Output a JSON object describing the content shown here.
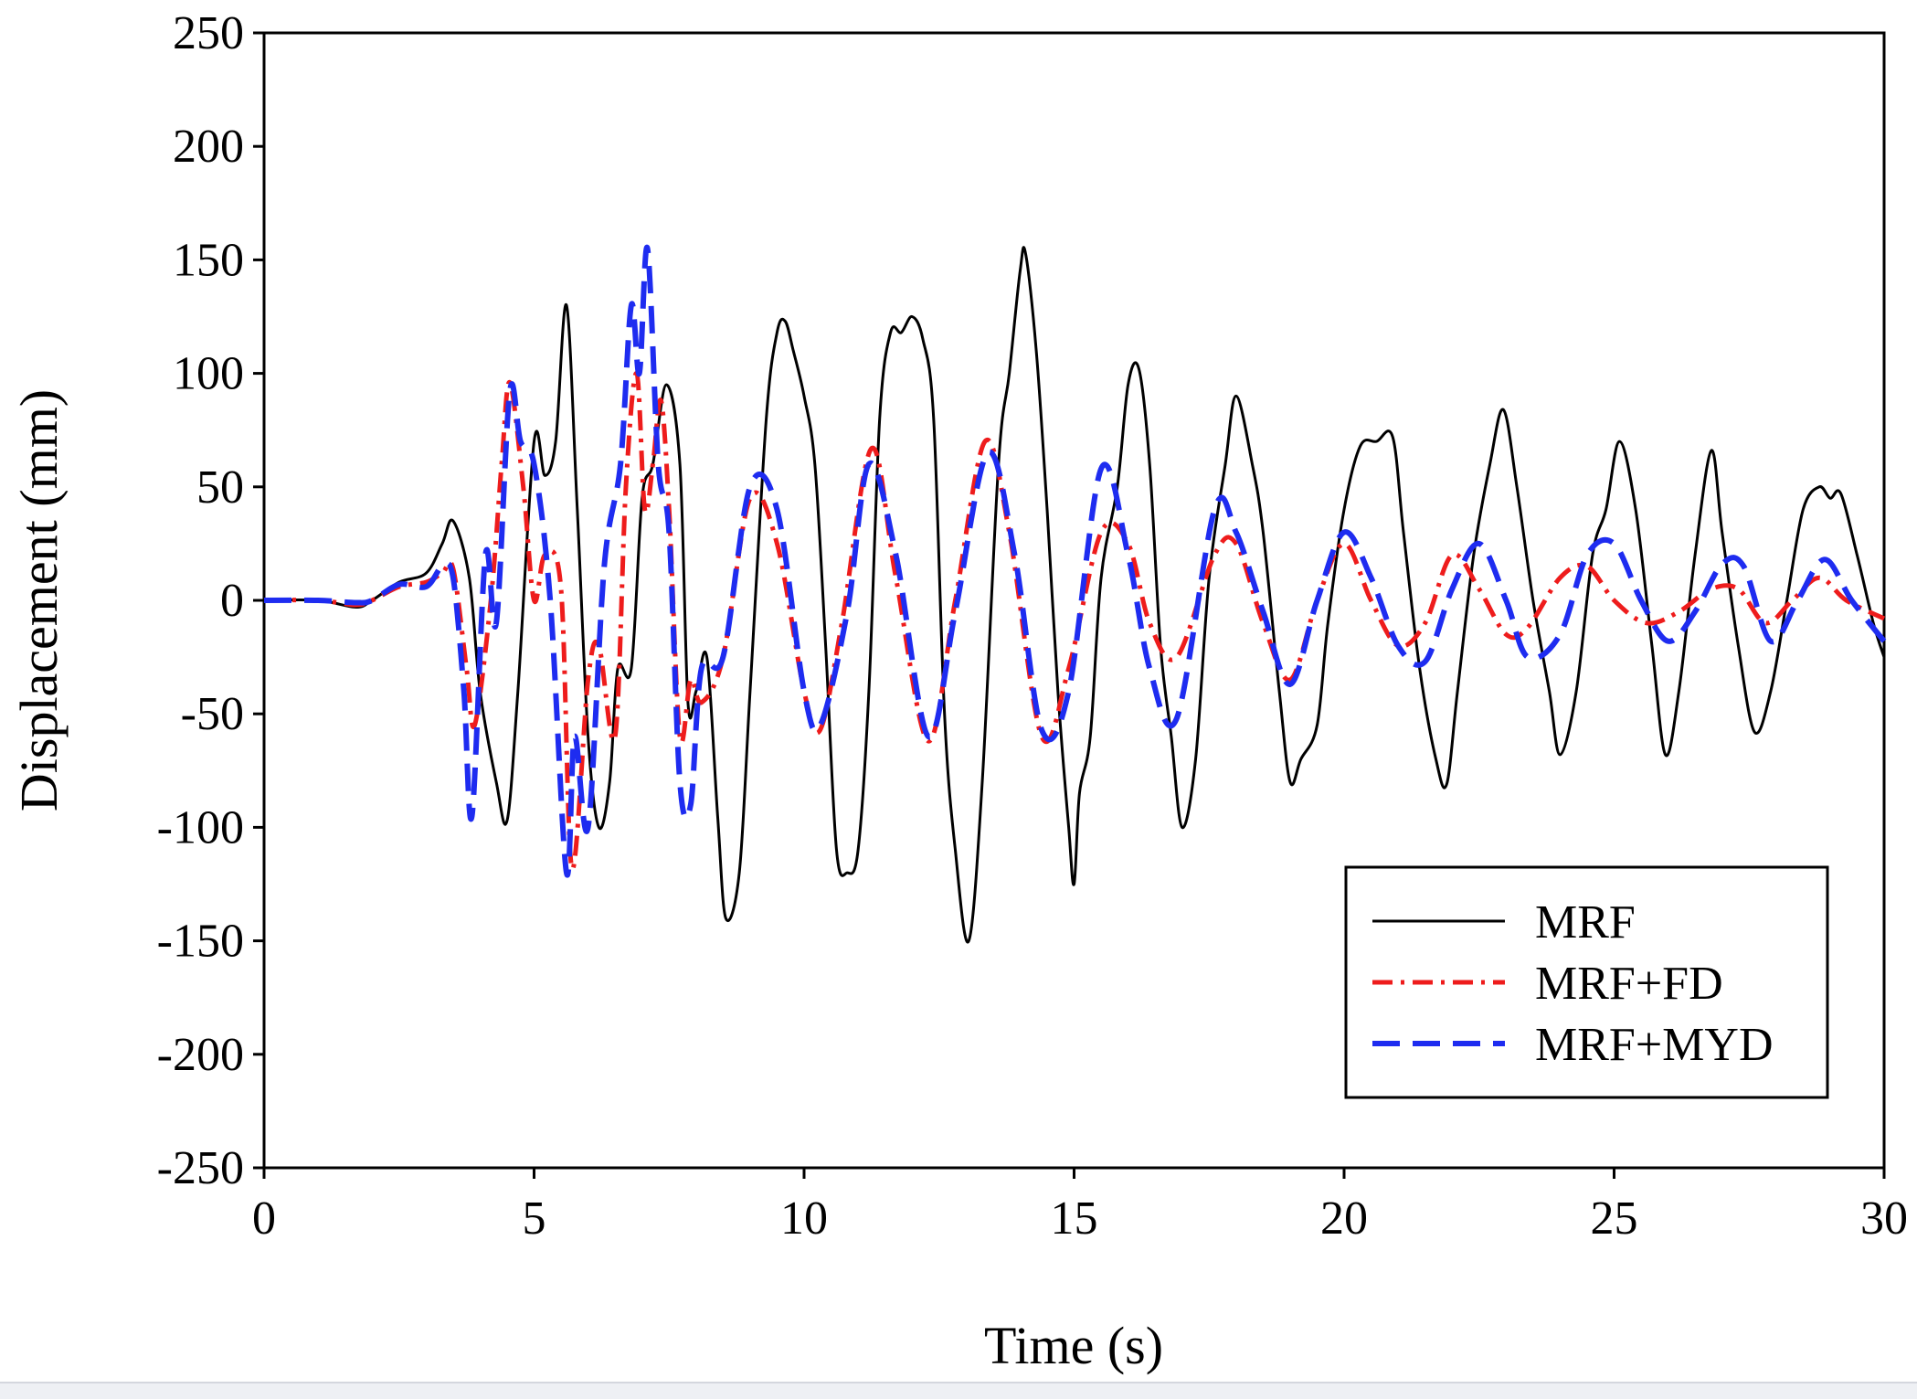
{
  "chart_data": {
    "type": "line",
    "title": "",
    "xlabel": "Time (s)",
    "ylabel": "Displacement (mm)",
    "xlim": [
      0,
      30
    ],
    "ylim": [
      -250,
      250
    ],
    "xticks": [
      0,
      5,
      10,
      15,
      20,
      25,
      30
    ],
    "yticks": [
      250,
      200,
      150,
      100,
      50,
      0,
      -50,
      -100,
      -150,
      -200,
      -250
    ],
    "grid": false,
    "legend_position": "bottom-right",
    "series": [
      {
        "name": "MRF",
        "color": "#000000",
        "style": "solid",
        "x": [
          0,
          1.0,
          1.7,
          2.0,
          2.5,
          3.0,
          3.3,
          3.5,
          3.8,
          4.0,
          4.3,
          4.5,
          4.7,
          5.0,
          5.2,
          5.4,
          5.6,
          5.8,
          6.0,
          6.2,
          6.4,
          6.55,
          6.8,
          7.0,
          7.2,
          7.45,
          7.7,
          7.85,
          8.0,
          8.2,
          8.4,
          8.55,
          8.8,
          9.0,
          9.3,
          9.5,
          9.65,
          9.8,
          10.0,
          10.2,
          10.4,
          10.6,
          10.8,
          11.0,
          11.2,
          11.4,
          11.6,
          11.8,
          12.0,
          12.2,
          12.4,
          12.6,
          12.8,
          13.05,
          13.3,
          13.6,
          13.8,
          14.0,
          14.1,
          14.3,
          14.5,
          14.7,
          14.9,
          15.0,
          15.1,
          15.3,
          15.5,
          15.8,
          16.0,
          16.2,
          16.4,
          16.6,
          16.8,
          17.0,
          17.25,
          17.5,
          17.8,
          18.0,
          18.3,
          18.5,
          18.8,
          19.0,
          19.2,
          19.5,
          19.7,
          20.0,
          20.3,
          20.6,
          20.9,
          21.1,
          21.4,
          21.7,
          21.9,
          22.1,
          22.4,
          22.7,
          22.95,
          23.2,
          23.5,
          23.8,
          24.0,
          24.3,
          24.6,
          24.85,
          25.1,
          25.4,
          25.7,
          25.95,
          26.2,
          26.5,
          26.8,
          27.0,
          27.3,
          27.6,
          27.9,
          28.2,
          28.5,
          28.8,
          29.0,
          29.2,
          29.5,
          29.8,
          30.0
        ],
        "values": [
          0,
          0,
          -3,
          0,
          8,
          12,
          25,
          35,
          10,
          -40,
          -80,
          -97,
          -40,
          70,
          55,
          70,
          130,
          40,
          -60,
          -100,
          -80,
          -30,
          -30,
          45,
          60,
          95,
          60,
          -45,
          -40,
          -25,
          -95,
          -140,
          -120,
          -40,
          80,
          118,
          123,
          110,
          90,
          60,
          -20,
          -110,
          -120,
          -110,
          -40,
          80,
          118,
          118,
          125,
          115,
          80,
          -50,
          -110,
          -150,
          -80,
          60,
          100,
          145,
          153,
          110,
          40,
          -40,
          -100,
          -125,
          -85,
          -60,
          10,
          50,
          95,
          102,
          60,
          -20,
          -60,
          -100,
          -70,
          10,
          60,
          90,
          60,
          30,
          -40,
          -80,
          -70,
          -55,
          -10,
          40,
          68,
          70,
          72,
          30,
          -30,
          -70,
          -81,
          -40,
          20,
          60,
          84,
          50,
          0,
          -40,
          -68,
          -40,
          20,
          40,
          70,
          40,
          -20,
          -68,
          -40,
          20,
          66,
          30,
          -20,
          -58,
          -40,
          0,
          40,
          50,
          45,
          47,
          20,
          -10,
          -25
        ]
      },
      {
        "name": "MRF+FD",
        "color": "#ee1c1c",
        "style": "dash-dot",
        "x": [
          0,
          1.0,
          1.7,
          2.0,
          2.5,
          3.0,
          3.3,
          3.5,
          3.75,
          3.9,
          4.2,
          4.4,
          4.55,
          4.8,
          5.0,
          5.2,
          5.5,
          5.7,
          6.0,
          6.2,
          6.5,
          6.7,
          6.9,
          7.05,
          7.2,
          7.35,
          7.5,
          7.7,
          7.9,
          8.1,
          8.5,
          9.0,
          9.5,
          10.0,
          10.3,
          10.7,
          11.25,
          11.7,
          12.3,
          12.8,
          13.35,
          13.8,
          14.4,
          14.9,
          15.5,
          16.0,
          16.4,
          16.9,
          17.6,
          18.0,
          18.5,
          19.0,
          19.5,
          20.0,
          20.5,
          21.0,
          21.5,
          22.0,
          22.5,
          23.0,
          23.4,
          24.0,
          24.5,
          25.0,
          25.6,
          26.2,
          26.8,
          27.3,
          27.8,
          28.3,
          28.8,
          29.3,
          30.0
        ],
        "values": [
          0,
          0,
          -2,
          0,
          6,
          8,
          12,
          14,
          -30,
          -55,
          0,
          60,
          96,
          50,
          0,
          20,
          5,
          -118,
          -35,
          -20,
          -60,
          50,
          100,
          40,
          60,
          88,
          40,
          -60,
          -35,
          -45,
          -25,
          45,
          25,
          -40,
          -57,
          -10,
          67,
          10,
          -62,
          0,
          70,
          30,
          -60,
          -30,
          30,
          25,
          -10,
          -25,
          20,
          25,
          -10,
          -35,
          0,
          25,
          0,
          -20,
          -10,
          20,
          5,
          -15,
          -12,
          10,
          15,
          0,
          -10,
          -5,
          5,
          5,
          -10,
          0,
          10,
          0,
          -8
        ]
      },
      {
        "name": "MRF+MYD",
        "color": "#1e2cf0",
        "style": "dashed",
        "x": [
          0,
          1.0,
          1.7,
          2.0,
          2.5,
          3.0,
          3.3,
          3.5,
          3.7,
          3.85,
          4.1,
          4.3,
          4.55,
          4.75,
          5.0,
          5.3,
          5.6,
          5.75,
          6.0,
          6.3,
          6.6,
          6.8,
          6.95,
          7.1,
          7.3,
          7.5,
          7.7,
          7.9,
          8.1,
          8.5,
          9.0,
          9.5,
          10.0,
          10.3,
          10.8,
          11.2,
          11.7,
          12.3,
          12.8,
          13.4,
          13.9,
          14.4,
          14.9,
          15.5,
          16.0,
          16.4,
          16.9,
          17.6,
          18.0,
          18.5,
          19.0,
          19.5,
          20.0,
          20.5,
          21.0,
          21.5,
          22.0,
          22.5,
          23.0,
          23.4,
          24.0,
          24.5,
          25.0,
          25.5,
          26.0,
          26.5,
          27.0,
          27.4,
          27.9,
          28.4,
          28.9,
          29.4,
          30.0
        ],
        "values": [
          0,
          0,
          -1,
          0,
          7,
          6,
          15,
          10,
          -40,
          -95,
          20,
          -10,
          92,
          70,
          60,
          0,
          -120,
          -60,
          -100,
          15,
          60,
          130,
          100,
          155,
          60,
          30,
          -80,
          -90,
          -30,
          -25,
          50,
          40,
          -40,
          -55,
          -5,
          60,
          20,
          -60,
          -5,
          65,
          20,
          -57,
          -40,
          58,
          20,
          -30,
          -52,
          40,
          30,
          -5,
          -37,
          0,
          30,
          10,
          -20,
          -27,
          5,
          25,
          0,
          -25,
          -15,
          20,
          25,
          0,
          -18,
          -5,
          16,
          15,
          -18,
          0,
          18,
          0,
          -18
        ]
      }
    ]
  }
}
